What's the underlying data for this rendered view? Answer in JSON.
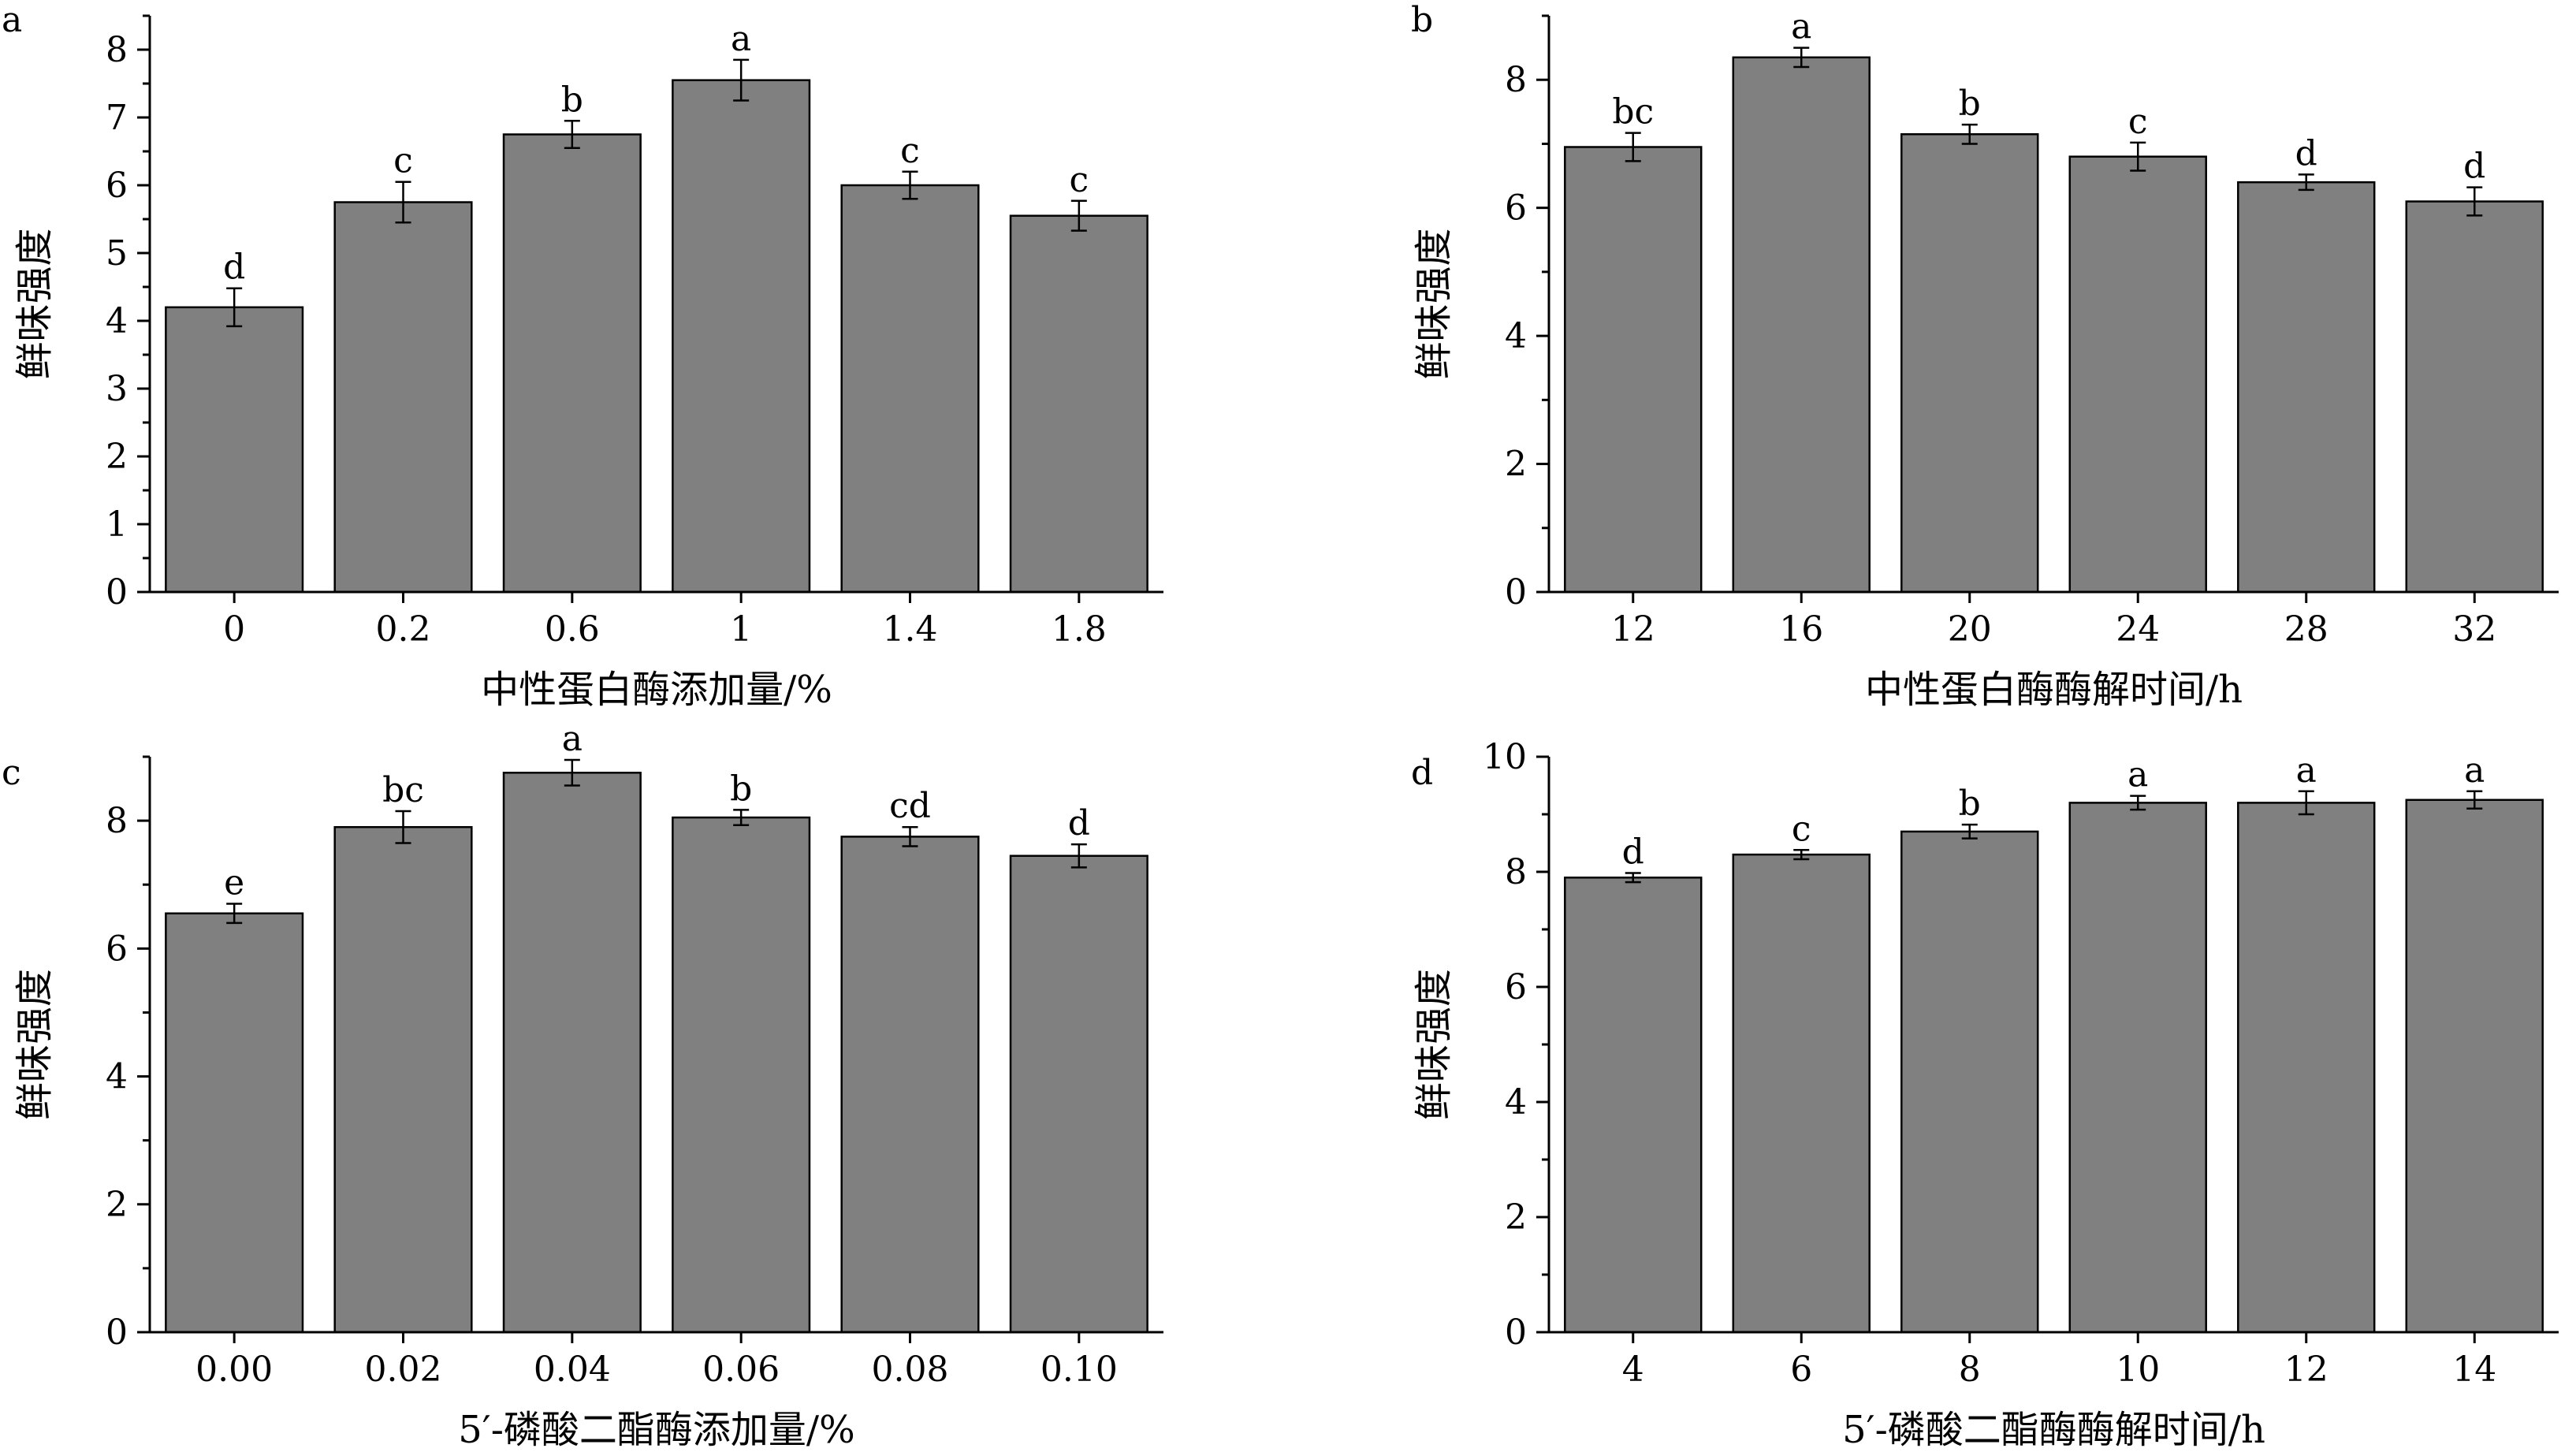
{
  "chart_data": [
    {
      "type": "bar",
      "panel_label": "a",
      "categories": [
        "0",
        "0.2",
        "0.6",
        "1",
        "1.4",
        "1.8"
      ],
      "values": [
        4.2,
        5.75,
        6.75,
        7.55,
        6.0,
        5.55
      ],
      "errors": [
        0.28,
        0.3,
        0.2,
        0.3,
        0.2,
        0.22
      ],
      "significance": [
        "d",
        "c",
        "b",
        "a",
        "c",
        "c"
      ],
      "xlabel": "中性蛋白酶添加量/%",
      "ylabel": "鲜味强度",
      "ylim": [
        0,
        8.5
      ],
      "yticks": [
        0,
        1,
        2,
        3,
        4,
        5,
        6,
        7,
        8
      ],
      "grid": false
    },
    {
      "type": "bar",
      "panel_label": "b",
      "categories": [
        "12",
        "16",
        "20",
        "24",
        "28",
        "32"
      ],
      "values": [
        6.95,
        8.35,
        7.15,
        6.8,
        6.4,
        6.1
      ],
      "errors": [
        0.22,
        0.15,
        0.15,
        0.22,
        0.12,
        0.22
      ],
      "significance": [
        "bc",
        "a",
        "b",
        "c",
        "d",
        "d"
      ],
      "xlabel": "中性蛋白酶酶解时间/h",
      "ylabel": "鲜味强度",
      "ylim": [
        0,
        9
      ],
      "yticks": [
        0,
        2,
        4,
        6,
        8
      ],
      "grid": false
    },
    {
      "type": "bar",
      "panel_label": "c",
      "categories": [
        "0.00",
        "0.02",
        "0.04",
        "0.06",
        "0.08",
        "0.10"
      ],
      "values": [
        6.55,
        7.9,
        8.75,
        8.05,
        7.75,
        7.45
      ],
      "errors": [
        0.15,
        0.25,
        0.2,
        0.12,
        0.15,
        0.18
      ],
      "significance": [
        "e",
        "bc",
        "a",
        "b",
        "cd",
        "d"
      ],
      "xlabel": "5′-磷酸二酯酶添加量/%",
      "ylabel": "鲜味强度",
      "ylim": [
        0,
        9
      ],
      "yticks": [
        0,
        2,
        4,
        6,
        8
      ],
      "grid": false
    },
    {
      "type": "bar",
      "panel_label": "d",
      "categories": [
        "4",
        "6",
        "8",
        "10",
        "12",
        "14"
      ],
      "values": [
        7.9,
        8.3,
        8.7,
        9.2,
        9.2,
        9.25
      ],
      "errors": [
        0.08,
        0.08,
        0.12,
        0.12,
        0.2,
        0.15
      ],
      "significance": [
        "d",
        "c",
        "b",
        "a",
        "a",
        "a"
      ],
      "xlabel": "5′-磷酸二酯酶酶解时间/h",
      "ylabel": "鲜味强度",
      "ylim": [
        0,
        10
      ],
      "yticks": [
        0,
        2,
        4,
        6,
        8,
        10
      ],
      "grid": false
    }
  ]
}
